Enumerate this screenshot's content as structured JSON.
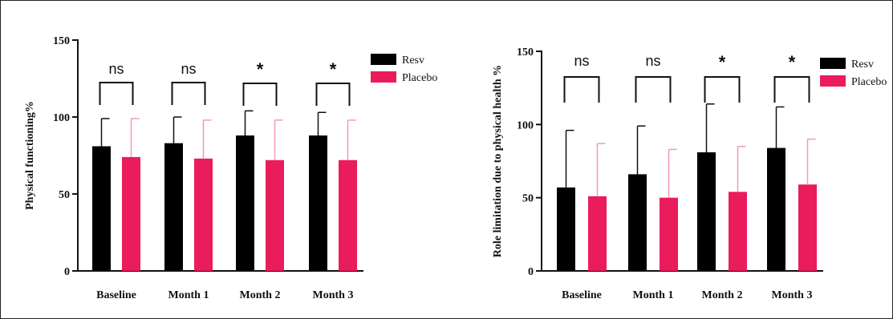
{
  "chart_data": [
    {
      "type": "bar",
      "ylabel": "Physical functioning%",
      "ylim": [
        0,
        150
      ],
      "yticks": [
        0,
        50,
        100,
        150
      ],
      "categories": [
        "Baseline",
        "Month 1",
        "Month 2",
        "Month 3"
      ],
      "series": [
        {
          "name": "Resv",
          "color": "#000000",
          "values": [
            81,
            83,
            88,
            88
          ],
          "errors": [
            18,
            17,
            16,
            15
          ]
        },
        {
          "name": "Placebo",
          "color": "#ea1c5c",
          "values": [
            74,
            73,
            72,
            72
          ],
          "errors": [
            25,
            25,
            26,
            26
          ]
        }
      ],
      "significance": [
        "ns",
        "ns",
        "*",
        "*"
      ],
      "legend": "right",
      "grid": false
    },
    {
      "type": "bar",
      "ylabel": "Role limitation due to physical health %",
      "ylim": [
        0,
        150
      ],
      "yticks": [
        0,
        50,
        100,
        150
      ],
      "categories": [
        "Baseline",
        "Month 1",
        "Month 2",
        "Month 3"
      ],
      "series": [
        {
          "name": "Resv",
          "color": "#000000",
          "values": [
            57,
            66,
            81,
            84
          ],
          "errors": [
            39,
            33,
            33,
            28
          ]
        },
        {
          "name": "Placebo",
          "color": "#ea1c5c",
          "values": [
            51,
            50,
            54,
            59
          ],
          "errors": [
            36,
            33,
            31,
            31
          ]
        }
      ],
      "significance": [
        "ns",
        "ns",
        "*",
        "*"
      ],
      "legend": "top-right",
      "grid": false
    }
  ]
}
